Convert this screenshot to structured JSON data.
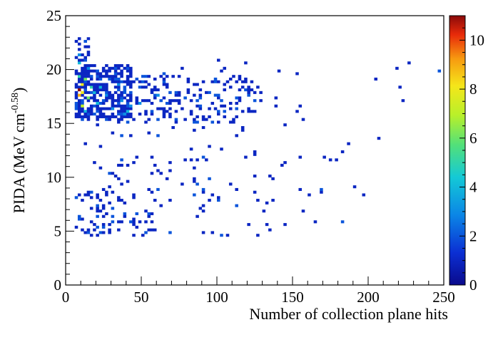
{
  "chart_data": {
    "type": "heatmap",
    "title": "",
    "xlabel": "Number of collection plane hits",
    "ylabel_main": "PIDA (MeV cm",
    "ylabel_exp": "-0.58",
    "ylabel_close": ")",
    "xlim": [
      0,
      250
    ],
    "ylim": [
      0,
      25
    ],
    "x_ticks": [
      0,
      50,
      100,
      150,
      200,
      250
    ],
    "y_ticks": [
      0,
      5,
      10,
      15,
      20,
      25
    ],
    "bin_width_x": 2,
    "bin_width_y": 0.25,
    "colorbar": {
      "min": 0,
      "max": 11,
      "ticks": [
        0,
        2,
        4,
        6,
        8,
        10
      ]
    },
    "grid": false,
    "legend": "none",
    "dense_regions": [
      {
        "x": [
          6,
          44
        ],
        "y": [
          15.5,
          20.5
        ],
        "weight": 0.9
      },
      {
        "x": [
          6,
          130
        ],
        "y": [
          15,
          19.5
        ],
        "weight": 0.35
      },
      {
        "x": [
          36,
          44
        ],
        "y": [
          15.5,
          17
        ],
        "weight": 0.8
      },
      {
        "x": [
          6,
          16
        ],
        "y": [
          19,
          23
        ],
        "weight": 0.6
      },
      {
        "x": [
          6,
          200
        ],
        "y": [
          4.5,
          12
        ],
        "weight": 0.08
      },
      {
        "x": [
          6,
          60
        ],
        "y": [
          4.5,
          9
        ],
        "weight": 0.22
      },
      {
        "x": [
          6,
          250
        ],
        "y": [
          12,
          21
        ],
        "weight": 0.03
      }
    ],
    "bins": [
      {
        "x": 8,
        "y": 18.0,
        "count": 11
      },
      {
        "x": 8,
        "y": 17.5,
        "count": 9
      },
      {
        "x": 10,
        "y": 18.5,
        "count": 8
      },
      {
        "x": 10,
        "y": 17.75,
        "count": 8
      },
      {
        "x": 12,
        "y": 19.0,
        "count": 6
      },
      {
        "x": 8,
        "y": 19.25,
        "count": 5
      },
      {
        "x": 10,
        "y": 16.5,
        "count": 7
      },
      {
        "x": 14,
        "y": 17.25,
        "count": 6
      },
      {
        "x": 16,
        "y": 18.25,
        "count": 5
      },
      {
        "x": 12,
        "y": 16.0,
        "count": 4
      },
      {
        "x": 8,
        "y": 20.5,
        "count": 4
      },
      {
        "x": 18,
        "y": 17.75,
        "count": 4
      },
      {
        "x": 20,
        "y": 16.75,
        "count": 4
      },
      {
        "x": 22,
        "y": 18.25,
        "count": 4
      },
      {
        "x": 40,
        "y": 16.0,
        "count": 4
      },
      {
        "x": 42,
        "y": 16.5,
        "count": 3
      },
      {
        "x": 38,
        "y": 15.75,
        "count": 3
      },
      {
        "x": 26,
        "y": 17.5,
        "count": 3
      },
      {
        "x": 30,
        "y": 16.25,
        "count": 3
      },
      {
        "x": 34,
        "y": 18.5,
        "count": 3
      },
      {
        "x": 14,
        "y": 20.0,
        "count": 3
      },
      {
        "x": 8,
        "y": 21.25,
        "count": 3
      },
      {
        "x": 36,
        "y": 17.0,
        "count": 3
      },
      {
        "x": 48,
        "y": 16.75,
        "count": 3
      },
      {
        "x": 60,
        "y": 17.5,
        "count": 3
      },
      {
        "x": 66,
        "y": 16.75,
        "count": 2
      },
      {
        "x": 78,
        "y": 17.25,
        "count": 2
      },
      {
        "x": 100,
        "y": 16.0,
        "count": 2
      },
      {
        "x": 94,
        "y": 17.75,
        "count": 2
      },
      {
        "x": 8,
        "y": 6.0,
        "count": 2
      },
      {
        "x": 42,
        "y": 5.75,
        "count": 2
      },
      {
        "x": 54,
        "y": 6.5,
        "count": 2
      },
      {
        "x": 20,
        "y": 7.25,
        "count": 2
      },
      {
        "x": 30,
        "y": 6.25,
        "count": 2
      },
      {
        "x": 24,
        "y": 5.25,
        "count": 2
      },
      {
        "x": 86,
        "y": 17.0,
        "count": 2
      },
      {
        "x": 112,
        "y": 17.25,
        "count": 2
      }
    ]
  }
}
